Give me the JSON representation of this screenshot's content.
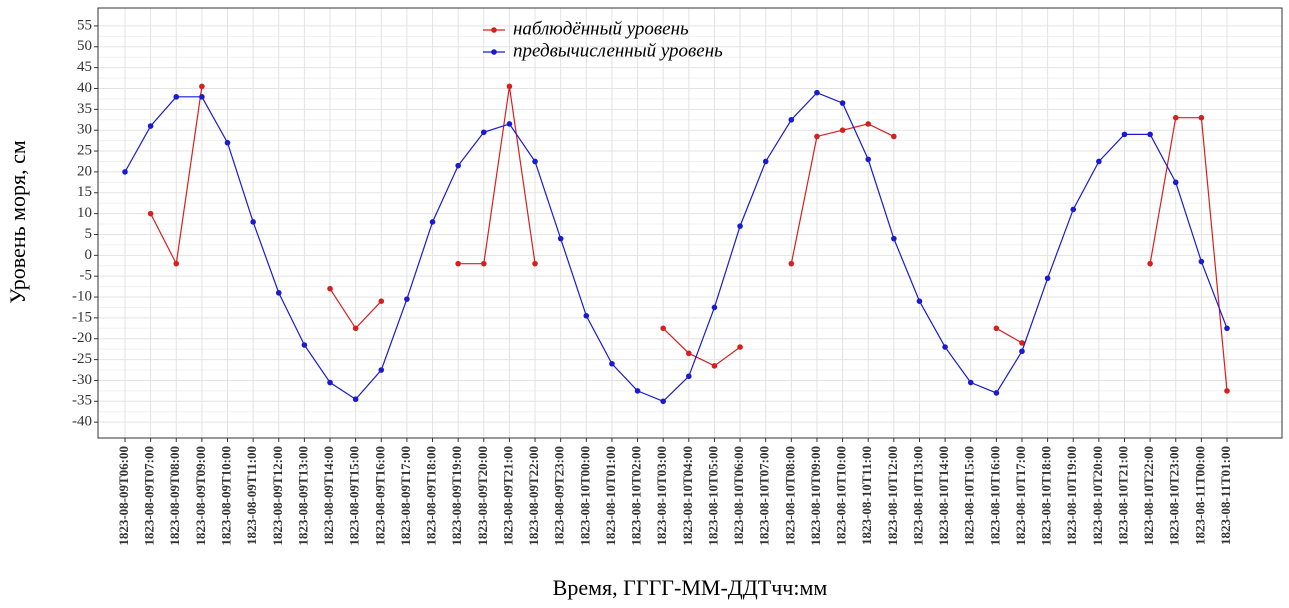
{
  "chart_data": {
    "type": "line",
    "x_label": "Время, ГГГГ-ММ-ДДТчч:мм",
    "y_label": "Уровень моря, см",
    "categories": [
      "1823-08-09T06:00",
      "1823-08-09T07:00",
      "1823-08-09T08:00",
      "1823-08-09T09:00",
      "1823-08-09T10:00",
      "1823-08-09T11:00",
      "1823-08-09T12:00",
      "1823-08-09T13:00",
      "1823-08-09T14:00",
      "1823-08-09T15:00",
      "1823-08-09T16:00",
      "1823-08-09T17:00",
      "1823-08-09T18:00",
      "1823-08-09T19:00",
      "1823-08-09T20:00",
      "1823-08-09T21:00",
      "1823-08-09T22:00",
      "1823-08-09T23:00",
      "1823-08-10T00:00",
      "1823-08-10T01:00",
      "1823-08-10T02:00",
      "1823-08-10T03:00",
      "1823-08-10T04:00",
      "1823-08-10T05:00",
      "1823-08-10T06:00",
      "1823-08-10T07:00",
      "1823-08-10T08:00",
      "1823-08-10T09:00",
      "1823-08-10T10:00",
      "1823-08-10T11:00",
      "1823-08-10T12:00",
      "1823-08-10T13:00",
      "1823-08-10T14:00",
      "1823-08-10T15:00",
      "1823-08-10T16:00",
      "1823-08-10T17:00",
      "1823-08-10T18:00",
      "1823-08-10T19:00",
      "1823-08-10T20:00",
      "1823-08-10T21:00",
      "1823-08-10T22:00",
      "1823-08-10T23:00",
      "1823-08-11T00:00",
      "1823-08-11T01:00"
    ],
    "series": [
      {
        "name": "наблюдённый уровень",
        "color": "#d62020",
        "values": [
          null,
          10,
          -2,
          40.5,
          null,
          null,
          null,
          null,
          -8,
          -17.5,
          -11,
          null,
          null,
          -2,
          -2,
          40.5,
          -2,
          null,
          null,
          null,
          null,
          -17.5,
          -23.5,
          -26.5,
          -22,
          null,
          -2,
          28.5,
          30,
          31.5,
          28.5,
          null,
          null,
          null,
          -17.5,
          -21,
          null,
          null,
          null,
          null,
          -2,
          33,
          33,
          -32.5
        ]
      },
      {
        "name": "предвычисленный уровень",
        "color": "#1a1ad0",
        "values": [
          20,
          31,
          38,
          38,
          27,
          8,
          -9,
          -21.5,
          -30.5,
          -34.5,
          -27.5,
          -10.5,
          8,
          21.5,
          29.5,
          31.5,
          22.5,
          4,
          -14.5,
          -26,
          -32.5,
          -35,
          -29,
          -12.5,
          7,
          22.5,
          32.5,
          39,
          36.5,
          23,
          4,
          -11,
          -22,
          -30.5,
          -33,
          -23,
          -5.5,
          11,
          22.5,
          29,
          29,
          17.5,
          -1.5,
          -17.5
        ]
      }
    ],
    "ylim": [
      -43.8,
      59.3
    ],
    "yticks": [
      -40,
      -35,
      -30,
      -25,
      -20,
      -15,
      -10,
      -5,
      0,
      5,
      10,
      15,
      20,
      25,
      30,
      35,
      40,
      45,
      50,
      55
    ],
    "grid": true,
    "legend": "top"
  }
}
